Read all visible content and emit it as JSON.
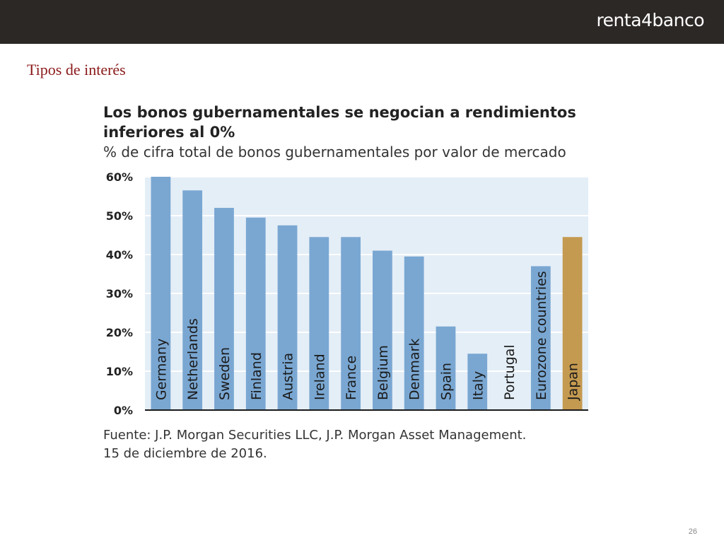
{
  "header": {
    "logo_text": "renta4banco"
  },
  "slide": {
    "title": "Tipos de interés",
    "page_number": "26"
  },
  "source": {
    "line1": "Fuente: J.P. Morgan Securities LLC, J.P. Morgan Asset Management.",
    "line2": "15 de diciembre de 2016."
  },
  "colors": {
    "bar": "#7aa7d2",
    "highlight": "#c49a50",
    "plot_bg": "#e4eef7",
    "grid": "#ffffff"
  },
  "chart_data": {
    "type": "bar",
    "title": "Los bonos gubernamentales se negocian a rendimientos inferiores al 0%",
    "title_line1": "Los bonos gubernamentales se negocian a rendimientos",
    "title_line2": "inferiores al 0%",
    "subtitle": "% de cifra total de bonos gubernamentales por valor de mercado",
    "categories": [
      "Germany",
      "Netherlands",
      "Sweden",
      "Finland",
      "Austria",
      "Ireland",
      "France",
      "Belgium",
      "Denmark",
      "Spain",
      "Italy",
      "Portugal",
      "Eurozone countries",
      "Japan"
    ],
    "values": [
      60,
      56.5,
      52,
      49.5,
      47.5,
      44.5,
      44.5,
      41,
      39.5,
      21.5,
      14.5,
      0,
      37,
      44.5
    ],
    "highlight_category": "Japan",
    "ylim": [
      0,
      60
    ],
    "yticks": [
      0,
      10,
      20,
      30,
      40,
      50,
      60
    ],
    "ytick_labels": [
      "0%",
      "10%",
      "20%",
      "30%",
      "40%",
      "50%",
      "60%"
    ],
    "xlabel": "",
    "ylabel": "",
    "grid": true,
    "legend": "none"
  }
}
